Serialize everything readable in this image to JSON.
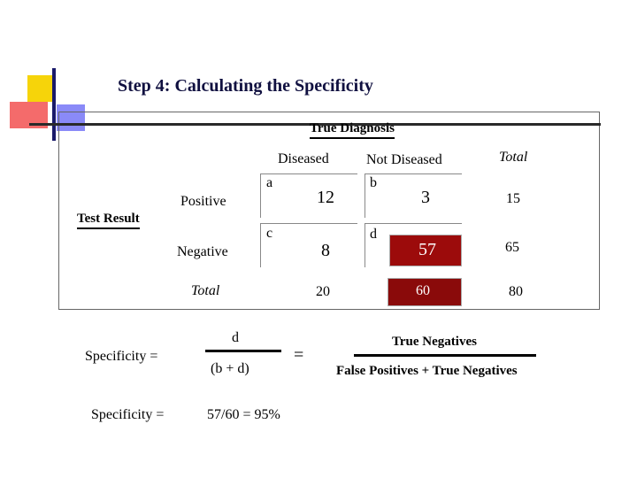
{
  "slide": {
    "title": "Step 4:  Calculating the Specificity"
  },
  "table": {
    "true_diagnosis": "True Diagnosis",
    "diseased": "Diseased",
    "not_diseased": "Not Diseased",
    "total_header": "Total",
    "test_result": "Test Result",
    "positive": "Positive",
    "negative": "Negative",
    "total_row": "Total",
    "cell_a_label": "a",
    "cell_b_label": "b",
    "cell_c_label": "c",
    "cell_d_label": "d",
    "a_value": "12",
    "b_value": "3",
    "c_value": "8",
    "d_value": "57",
    "pos_total": "15",
    "neg_total": "65",
    "diseased_total": "20",
    "not_diseased_total": "60",
    "grand_total": "80"
  },
  "formula": {
    "specificity_label": "Specificity  =",
    "numerator": "d",
    "denominator": "(b + d)",
    "equals": "=",
    "word_numerator": "True Negatives",
    "word_denominator": "False Positives + True Negatives",
    "result_label": "Specificity  =",
    "result_value": "57/60   =  95%"
  },
  "colors": {
    "title": "#101040",
    "highlight": "#9c0b0b",
    "deco_yellow": "#f6d40a",
    "deco_red": "#f46b6b",
    "deco_blue": "#8a8af8"
  }
}
